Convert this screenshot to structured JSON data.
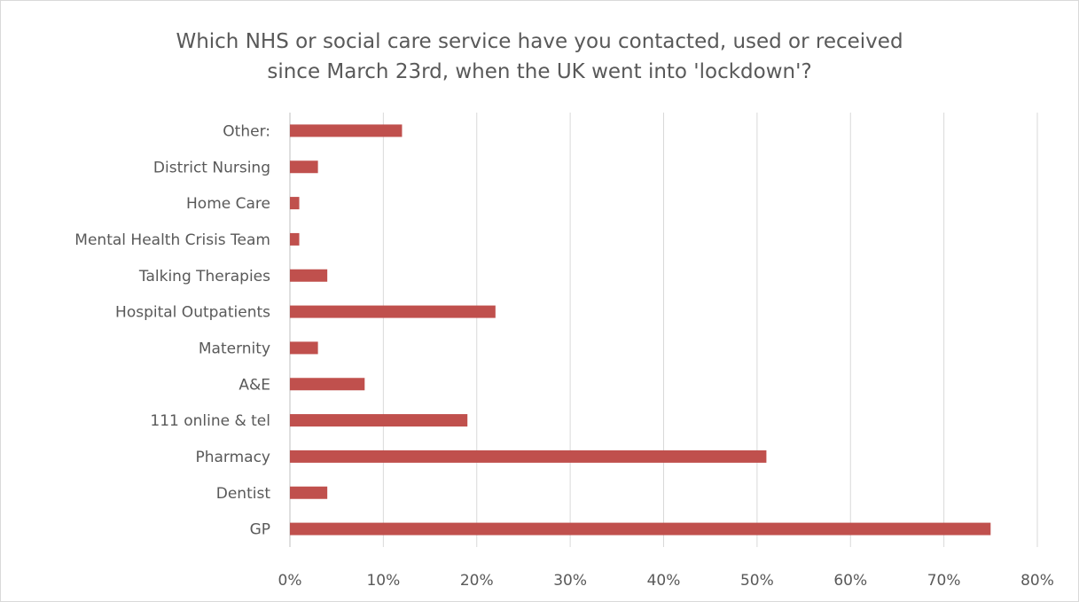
{
  "chart_data": {
    "type": "bar",
    "orientation": "horizontal",
    "title_lines": [
      "Which NHS or social care service have you contacted, used or received",
      "since March 23rd, when the UK went into 'lockdown'?"
    ],
    "categories": [
      "GP",
      "Dentist",
      "Pharmacy",
      "111 online & tel",
      "A&E",
      "Maternity",
      "Hospital Outpatients",
      "Talking Therapies",
      "Mental Health Crisis Team",
      "Home Care",
      "District Nursing",
      "Other:"
    ],
    "values": [
      75,
      4,
      51,
      19,
      8,
      3,
      22,
      4,
      1,
      1,
      3,
      12
    ],
    "xlim": [
      0,
      80
    ],
    "x_ticks": [
      "0%",
      "10%",
      "20%",
      "30%",
      "40%",
      "50%",
      "60%",
      "70%",
      "80%"
    ],
    "grid": true,
    "legend": "none",
    "bar_color": "#c0504d",
    "grid_color": "#d9d9d9",
    "text_color": "#595959"
  }
}
